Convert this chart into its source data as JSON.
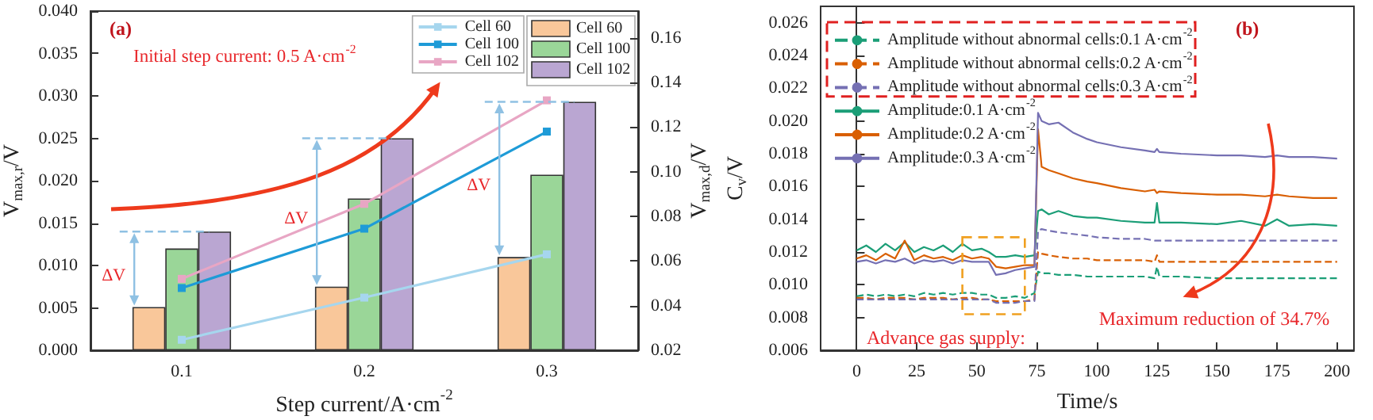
{
  "chart_data": [
    {
      "type": "bar",
      "categories": [
        "0.1",
        "0.2",
        "0.3"
      ],
      "xlabel": "Step current/A·cm$^{-2}$",
      "ylabel": "V$_{max,r}$/V",
      "y2label": "V$_{max,d}$/V",
      "ylim": [
        0,
        0.04
      ],
      "yticks": [
        {
          "value": 0,
          "label": "0.000"
        },
        {
          "value": 0.005,
          "label": "0.005"
        },
        {
          "value": 0.01,
          "label": "0.010"
        },
        {
          "value": 0.015,
          "label": "0.015"
        },
        {
          "value": 0.02,
          "label": "0.020"
        },
        {
          "value": 0.025,
          "label": "0.025"
        },
        {
          "value": 0.03,
          "label": "0.030"
        },
        {
          "value": 0.035,
          "label": "0.035"
        },
        {
          "value": 0.04,
          "label": "0.040"
        }
      ],
      "y2lim": [
        0.02,
        0.172
      ],
      "y2ticks": [
        0.02,
        0.04,
        0.06,
        0.08,
        {
          "value": 0.1,
          "label": "0.10"
        },
        0.12,
        0.14,
        0.16
      ],
      "legend": "top right",
      "marker": "square",
      "annotations": [
        "(a)",
        "Initial step current: 0.5 A·cm$^{-2}$",
        "ΔV",
        "ΔV",
        "ΔV"
      ],
      "series": [
        {
          "name": "Cell 60",
          "color": "#f9c79a",
          "values": [
            0.0051,
            0.0075,
            0.011
          ]
        },
        {
          "name": "Cell 100",
          "color": "#9ad698",
          "values": [
            0.012,
            0.0179,
            0.0207
          ]
        },
        {
          "name": "Cell 102",
          "color": "#baa6d2",
          "values": [
            0.014,
            0.025,
            0.0293
          ]
        },
        {
          "name": "Cell 60",
          "type": "line",
          "axis": "y2",
          "color": "#a6d6ee",
          "values": [
            0.0247,
            0.0436,
            0.063
          ]
        },
        {
          "name": "Cell 100",
          "type": "line",
          "axis": "y2",
          "color": "#1e9bd7",
          "values": [
            0.0479,
            0.0745,
            0.118
          ]
        },
        {
          "name": "Cell 102",
          "type": "line",
          "axis": "y2",
          "color": "#e8a6c4",
          "values": [
            0.052,
            0.0856,
            0.132
          ]
        }
      ]
    },
    {
      "type": "line",
      "xlabel": "Time/s",
      "ylabel": "C$_{v}$/V",
      "xlim": [
        -15,
        207
      ],
      "xticks": [
        0,
        25,
        50,
        75,
        100,
        125,
        150,
        175,
        200
      ],
      "ylim": [
        0.006,
        0.027
      ],
      "yticks": [
        {
          "value": 0.006,
          "label": "0.006"
        },
        {
          "value": 0.008,
          "label": "0.008"
        },
        {
          "value": 0.01,
          "label": "0.010"
        },
        {
          "value": 0.012,
          "label": "0.012"
        },
        {
          "value": 0.014,
          "label": "0.014"
        },
        {
          "value": 0.016,
          "label": "0.016"
        },
        {
          "value": 0.018,
          "label": "0.018"
        },
        {
          "value": 0.02,
          "label": "0.020"
        },
        {
          "value": 0.022,
          "label": "0.022"
        },
        {
          "value": 0.024,
          "label": "0.024"
        },
        {
          "value": 0.026,
          "label": "0.026"
        }
      ],
      "legend": "top left",
      "annotations": [
        "(b)",
        "Advance gas supply:",
        "Maximum reduction of 34.7%"
      ],
      "x": [
        0,
        4,
        8,
        12,
        16,
        20,
        24,
        28,
        32,
        36,
        40,
        44,
        48,
        52,
        55,
        58,
        62,
        66,
        70,
        74,
        75.5,
        77,
        80,
        84,
        90,
        96,
        100,
        110,
        120,
        124,
        125,
        126,
        135,
        150,
        160,
        170,
        175,
        180,
        190,
        200
      ],
      "series": [
        {
          "name": "Amplitude without abnormal cells:0.1 A·cm$^{-2}$",
          "color": "#1b9e77",
          "line_style": "dashed",
          "values": [
            0.0093,
            0.0094,
            0.0093,
            0.0094,
            0.0093,
            0.0094,
            0.0093,
            0.0095,
            0.0094,
            0.0095,
            0.0094,
            0.0095,
            0.0095,
            0.0094,
            0.0094,
            0.0092,
            0.0092,
            0.0093,
            0.0092,
            0.0095,
            0.0108,
            0.0107,
            0.0107,
            0.0106,
            0.0106,
            0.0105,
            0.0105,
            0.0105,
            0.0105,
            0.0104,
            0.0111,
            0.0105,
            0.0105,
            0.0104,
            0.0104,
            0.0104,
            0.0104,
            0.0104,
            0.0104,
            0.0104
          ]
        },
        {
          "name": "Amplitude without abnormal cells:0.2 A·cm$^{-2}$",
          "color": "#d95f02",
          "line_style": "dashed",
          "values": [
            0.0092,
            0.0092,
            0.0091,
            0.0092,
            0.0092,
            0.0092,
            0.0091,
            0.0092,
            0.0092,
            0.0092,
            0.0091,
            0.0092,
            0.0092,
            0.0091,
            0.0091,
            0.009,
            0.009,
            0.009,
            0.009,
            0.0091,
            0.012,
            0.0119,
            0.0118,
            0.0117,
            0.0116,
            0.0116,
            0.0115,
            0.0115,
            0.0115,
            0.0114,
            0.0118,
            0.0114,
            0.0114,
            0.0114,
            0.0114,
            0.0114,
            0.0114,
            0.0114,
            0.0114,
            0.0114
          ]
        },
        {
          "name": "Amplitude without abnormal cells:0.3 A·cm$^{-2}$",
          "color": "#7570b3",
          "line_style": "dashed",
          "values": [
            0.0091,
            0.0091,
            0.0091,
            0.0091,
            0.0091,
            0.0091,
            0.0091,
            0.0091,
            0.0091,
            0.0091,
            0.0091,
            0.0091,
            0.0091,
            0.0091,
            0.0091,
            0.0089,
            0.0089,
            0.0089,
            0.009,
            0.009,
            0.0133,
            0.0134,
            0.0133,
            0.0132,
            0.0131,
            0.013,
            0.0129,
            0.0128,
            0.0128,
            0.0127,
            0.0127,
            0.0127,
            0.0127,
            0.0127,
            0.0127,
            0.0127,
            0.0127,
            0.0127,
            0.0127,
            0.0127
          ]
        },
        {
          "name": "Amplitude:0.1 A·cm$^{-2}$",
          "color": "#1b9e77",
          "line_style": "solid",
          "values": [
            0.0121,
            0.0124,
            0.012,
            0.0125,
            0.0121,
            0.0126,
            0.012,
            0.0123,
            0.0121,
            0.0124,
            0.012,
            0.0125,
            0.0121,
            0.0122,
            0.012,
            0.0117,
            0.0117,
            0.0118,
            0.0117,
            0.0118,
            0.0145,
            0.0146,
            0.0143,
            0.0145,
            0.0142,
            0.0141,
            0.0141,
            0.0139,
            0.0138,
            0.0138,
            0.015,
            0.0138,
            0.0138,
            0.0137,
            0.0139,
            0.0136,
            0.014,
            0.0136,
            0.0137,
            0.0136
          ]
        },
        {
          "name": "Amplitude:0.2 A·cm$^{-2}$",
          "color": "#d95f02",
          "line_style": "solid",
          "values": [
            0.0116,
            0.0118,
            0.0115,
            0.0119,
            0.0116,
            0.0127,
            0.0115,
            0.0118,
            0.0116,
            0.0117,
            0.0115,
            0.0118,
            0.0116,
            0.0117,
            0.0116,
            0.0111,
            0.011,
            0.0111,
            0.0112,
            0.0112,
            0.0195,
            0.0172,
            0.017,
            0.0168,
            0.0165,
            0.0163,
            0.0162,
            0.0159,
            0.0157,
            0.0158,
            0.0156,
            0.0157,
            0.0156,
            0.0155,
            0.0155,
            0.0154,
            0.0155,
            0.0154,
            0.0153,
            0.0153
          ]
        },
        {
          "name": "Amplitude:0.3 A·cm$^{-2}$",
          "color": "#7570b3",
          "line_style": "solid",
          "values": [
            0.0114,
            0.0115,
            0.0113,
            0.0115,
            0.0114,
            0.0116,
            0.0113,
            0.0115,
            0.0114,
            0.0115,
            0.0113,
            0.0115,
            0.0114,
            0.0114,
            0.0114,
            0.0106,
            0.0107,
            0.0109,
            0.011,
            0.0111,
            0.0205,
            0.02,
            0.0198,
            0.0199,
            0.0193,
            0.0189,
            0.0187,
            0.0184,
            0.0182,
            0.0181,
            0.0183,
            0.0181,
            0.018,
            0.0179,
            0.0179,
            0.0178,
            0.0179,
            0.0178,
            0.0178,
            0.0177
          ]
        }
      ]
    }
  ]
}
